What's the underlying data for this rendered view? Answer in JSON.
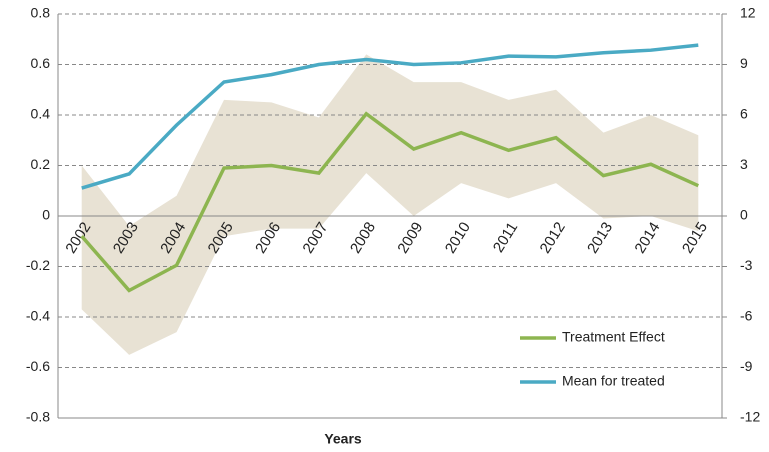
{
  "chart_data": {
    "type": "line",
    "categories": [
      "2002",
      "2003",
      "2004",
      "2005",
      "2006",
      "2007",
      "2008",
      "2009",
      "2010",
      "2011",
      "2012",
      "2013",
      "2014",
      "2015"
    ],
    "xlabel": "Years",
    "series": [
      {
        "name": "Treatment Effect",
        "color": "#8db550",
        "values": [
          -0.08,
          -0.295,
          -0.195,
          0.19,
          0.2,
          0.17,
          0.405,
          0.265,
          0.33,
          0.26,
          0.31,
          0.16,
          0.205,
          0.12
        ]
      },
      {
        "name": "Mean for treated",
        "color": "#4aaac4",
        "axis": "y2",
        "values": [
          1.66,
          2.5,
          5.4,
          7.96,
          8.4,
          9.0,
          9.3,
          9.0,
          9.1,
          9.5,
          9.45,
          9.7,
          9.85,
          10.15
        ]
      }
    ],
    "band": {
      "color": "#e8e2d4",
      "upper": [
        0.2,
        -0.04,
        0.08,
        0.46,
        0.45,
        0.39,
        0.64,
        0.53,
        0.53,
        0.46,
        0.5,
        0.33,
        0.4,
        0.32
      ],
      "lower": [
        -0.37,
        -0.55,
        -0.46,
        -0.08,
        -0.05,
        -0.05,
        0.17,
        0.0,
        0.13,
        0.07,
        0.13,
        -0.01,
        0.0,
        -0.06
      ]
    },
    "ylim": [
      -0.8,
      0.8
    ],
    "yticks": [
      0.8,
      0.6,
      0.4,
      0.2,
      0,
      -0.2,
      -0.4,
      -0.6,
      -0.8
    ],
    "y2lim": [
      -12,
      12
    ],
    "y2ticks": [
      12,
      9,
      6,
      3,
      0,
      -3,
      -6,
      -9,
      -12
    ],
    "grid": true,
    "legend": "lower right"
  }
}
